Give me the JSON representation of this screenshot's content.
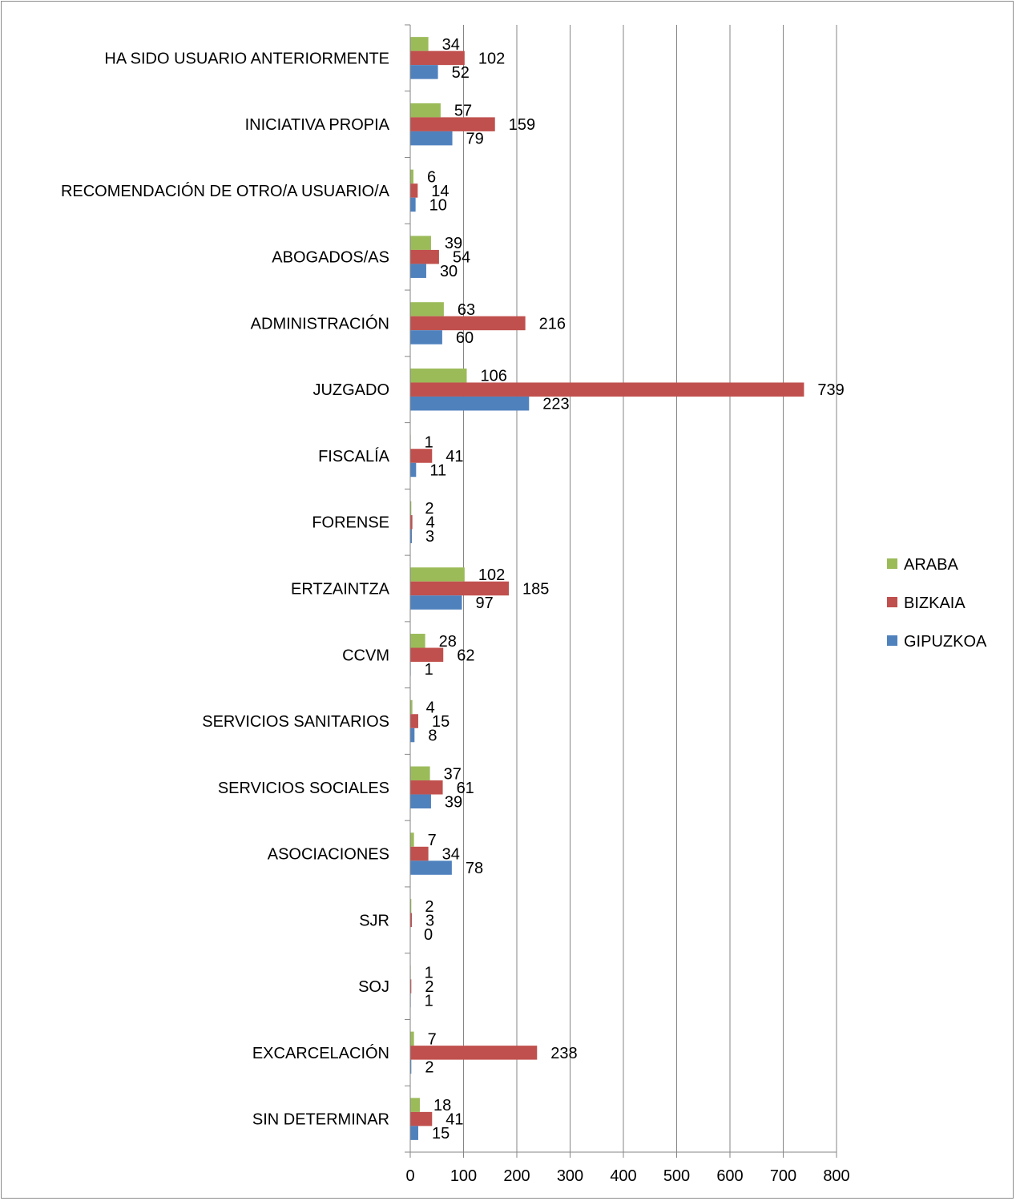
{
  "chart_data": {
    "type": "bar",
    "orientation": "horizontal",
    "categories": [
      "HA SIDO USUARIO ANTERIORMENTE",
      "INICIATIVA PROPIA",
      "RECOMENDACIÓN DE OTRO/A USUARIO/A",
      "ABOGADOS/AS",
      "ADMINISTRACIÓN",
      "JUZGADO",
      "FISCALÍA",
      "FORENSE",
      "ERTZAINTZA",
      "CCVM",
      "SERVICIOS SANITARIOS",
      "SERVICIOS SOCIALES",
      "ASOCIACIONES",
      "SJR",
      "SOJ",
      "EXCARCELACIÓN",
      "SIN DETERMINAR"
    ],
    "series": [
      {
        "name": "ARABA",
        "color": "#9bbb59",
        "values": [
          34,
          57,
          6,
          39,
          63,
          106,
          1,
          2,
          102,
          28,
          4,
          37,
          7,
          2,
          1,
          7,
          18
        ]
      },
      {
        "name": "BIZKAIA",
        "color": "#c0504d",
        "values": [
          102,
          159,
          14,
          54,
          216,
          739,
          41,
          4,
          185,
          62,
          15,
          61,
          34,
          3,
          2,
          238,
          41
        ]
      },
      {
        "name": "GIPUZKOA",
        "color": "#4f81bd",
        "values": [
          52,
          79,
          10,
          30,
          60,
          223,
          11,
          3,
          97,
          1,
          8,
          39,
          78,
          0,
          1,
          2,
          15
        ]
      }
    ],
    "xlim": [
      0,
      800
    ],
    "xticks": [
      0,
      100,
      200,
      300,
      400,
      500,
      600,
      700,
      800
    ],
    "grid": true,
    "legend_position": "right",
    "title": "",
    "xlabel": "",
    "ylabel": ""
  }
}
